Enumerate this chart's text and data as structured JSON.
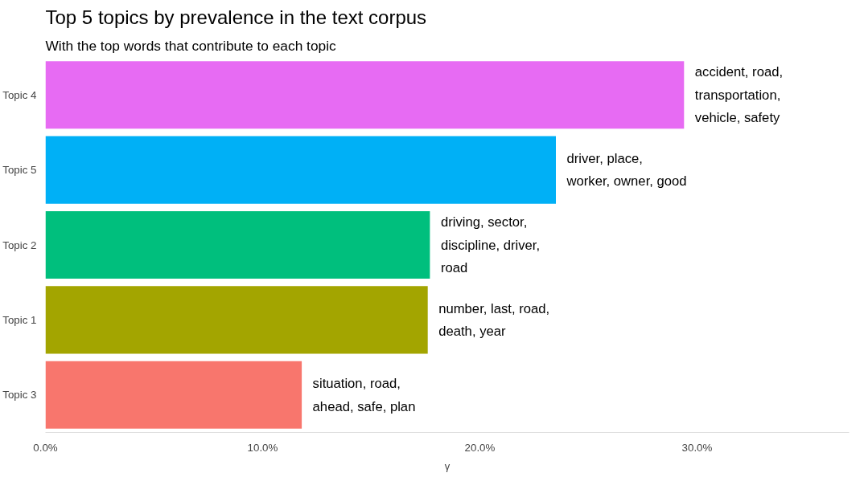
{
  "chart_data": {
    "type": "bar",
    "orientation": "horizontal",
    "title": "Top 5 topics by prevalence in the text corpus",
    "subtitle": "With the top words that contribute to each topic",
    "xlabel": "γ",
    "categories": [
      "Topic 4",
      "Topic 5",
      "Topic 2",
      "Topic 1",
      "Topic 3"
    ],
    "values": [
      29.4,
      23.5,
      17.7,
      17.6,
      11.8
    ],
    "colors": [
      "#e76bf3",
      "#00b0f6",
      "#00bf7d",
      "#a3a500",
      "#f8766d"
    ],
    "value_labels": [
      "accident, road,\ntransportation,\nvehicle, safety",
      "driver, place,\nworker, owner, good",
      "driving, sector,\ndiscipline, driver,\nroad",
      "number, last, road,\ndeath, year",
      "situation, road,\nahead, safe, plan"
    ],
    "xlim": [
      0,
      37
    ],
    "xticks": [
      {
        "value": 0,
        "label": "0.0%"
      },
      {
        "value": 10,
        "label": "10.0%"
      },
      {
        "value": 20,
        "label": "20.0%"
      },
      {
        "value": 30,
        "label": "30.0%"
      }
    ],
    "grid": false
  }
}
